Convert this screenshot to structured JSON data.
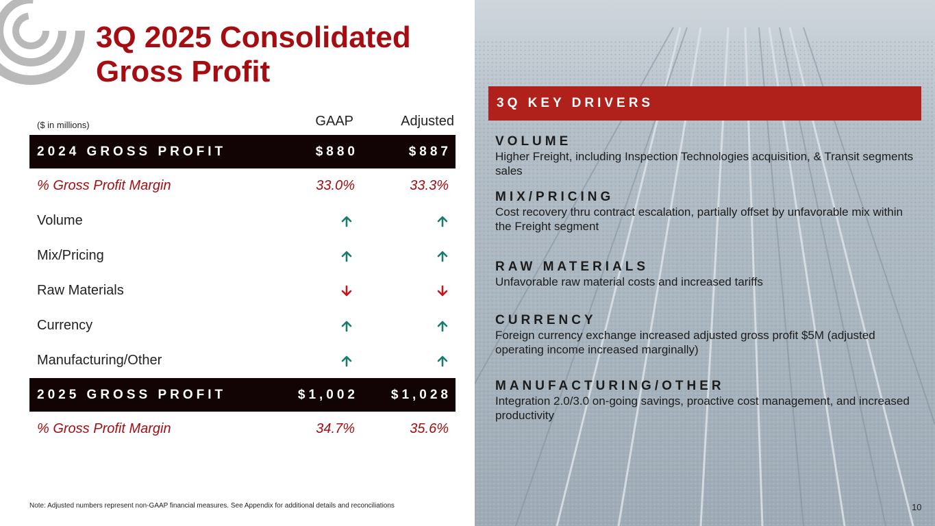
{
  "slide": {
    "title": "3Q 2025 Consolidated Gross Profit",
    "page_number": "10",
    "note": "Note:  Adjusted numbers represent non-GAAP financial measures.  See Appendix for additional details and reconciliations"
  },
  "table": {
    "units": "($ in millions)",
    "col_gaap": "GAAP",
    "col_adjusted": "Adjusted",
    "gp_2024": {
      "label": "2024 GROSS PROFIT",
      "gaap": "$880",
      "adjusted": "$887"
    },
    "margin_2024": {
      "label": "% Gross Profit Margin",
      "gaap": "33.0%",
      "adjusted": "33.3%"
    },
    "drivers": [
      {
        "label": "Volume",
        "gaap": "up",
        "adjusted": "up"
      },
      {
        "label": "Mix/Pricing",
        "gaap": "up",
        "adjusted": "up"
      },
      {
        "label": "Raw Materials",
        "gaap": "down",
        "adjusted": "down"
      },
      {
        "label": "Currency",
        "gaap": "up",
        "adjusted": "up"
      },
      {
        "label": "Manufacturing/Other",
        "gaap": "up",
        "adjusted": "up"
      }
    ],
    "gp_2025": {
      "label": "2025 GROSS PROFIT",
      "gaap": "$1,002",
      "adjusted": "$1,028"
    },
    "margin_2025": {
      "label": "% Gross Profit Margin",
      "gaap": "34.7%",
      "adjusted": "35.6%"
    }
  },
  "key_drivers": {
    "heading": "3Q KEY DRIVERS",
    "items": [
      {
        "title": "VOLUME",
        "text": "Higher Freight, including Inspection Technologies acquisition, & Transit segments sales"
      },
      {
        "title": "MIX/PRICING",
        "text": "Cost recovery thru contract escalation, partially offset by unfavorable mix within the Freight segment"
      },
      {
        "title": "RAW MATERIALS",
        "text": "Unfavorable raw material costs and increased tariffs"
      },
      {
        "title": "CURRENCY",
        "text": "Foreign currency exchange increased adjusted gross profit $5M (adjusted operating income increased marginally)"
      },
      {
        "title": "MANUFACTURING/OTHER",
        "text": "Integration 2.0/3.0 on-going savings, proactive cost management, and increased productivity"
      }
    ]
  },
  "colors": {
    "brand_red": "#a50d12",
    "bar_red": "#b0211c",
    "dark_row": "#120405",
    "arrow_up": "#1a7a6e",
    "arrow_down": "#c4161c"
  },
  "icons": {
    "up": "arrow-up-icon",
    "down": "arrow-down-icon",
    "logo": "company-logo"
  }
}
